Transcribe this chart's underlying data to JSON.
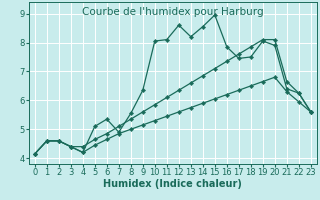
{
  "title": "Courbe de l'humidex pour Harburg",
  "xlabel": "Humidex (Indice chaleur)",
  "xlim": [
    -0.5,
    23.5
  ],
  "ylim": [
    3.8,
    9.4
  ],
  "xticks": [
    0,
    1,
    2,
    3,
    4,
    5,
    6,
    7,
    8,
    9,
    10,
    11,
    12,
    13,
    14,
    15,
    16,
    17,
    18,
    19,
    20,
    21,
    22,
    23
  ],
  "yticks": [
    4,
    5,
    6,
    7,
    8,
    9
  ],
  "background_color": "#c8ecec",
  "grid_color": "#ffffff",
  "line_color": "#1a6b5a",
  "line1_y": [
    4.15,
    4.6,
    4.6,
    4.4,
    4.2,
    5.1,
    5.35,
    4.9,
    5.55,
    6.35,
    8.05,
    8.1,
    8.6,
    8.2,
    8.55,
    8.95,
    7.85,
    7.45,
    7.5,
    8.05,
    7.9,
    6.4,
    6.25,
    5.6
  ],
  "line2_y": [
    4.15,
    4.6,
    4.6,
    4.4,
    4.4,
    4.65,
    4.85,
    5.1,
    5.35,
    5.6,
    5.85,
    6.1,
    6.35,
    6.6,
    6.85,
    7.1,
    7.35,
    7.6,
    7.85,
    8.1,
    8.1,
    6.65,
    6.25,
    5.6
  ],
  "line3_y": [
    4.15,
    4.6,
    4.6,
    4.4,
    4.2,
    4.45,
    4.65,
    4.85,
    5.0,
    5.15,
    5.3,
    5.45,
    5.6,
    5.75,
    5.9,
    6.05,
    6.2,
    6.35,
    6.5,
    6.65,
    6.8,
    6.3,
    5.95,
    5.6
  ],
  "marker": "D",
  "marker_size": 2.2,
  "linewidth": 0.9,
  "title_fontsize": 7.5,
  "label_fontsize": 7,
  "tick_fontsize": 6
}
